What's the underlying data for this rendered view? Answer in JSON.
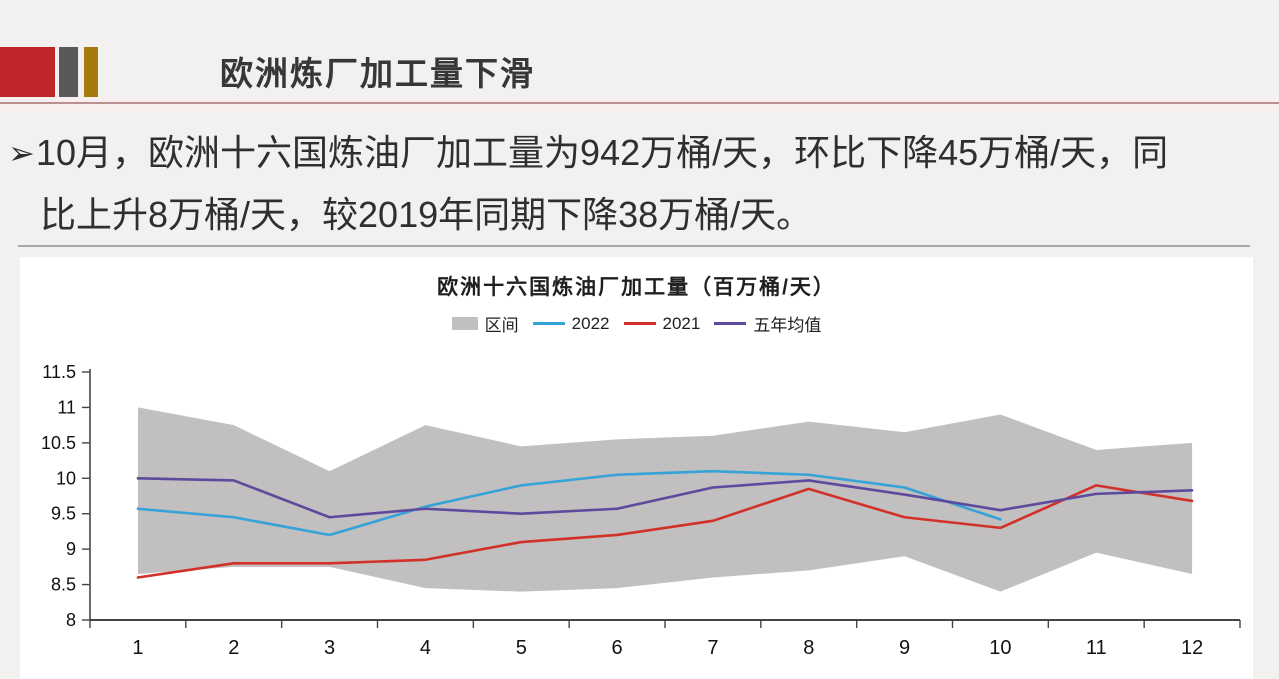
{
  "header": {
    "title": "欧洲炼厂加工量下滑",
    "accent_red": "#bf2629",
    "accent_gray": "#5b5859",
    "accent_gold": "#a8790f"
  },
  "bullet": {
    "marker": "➢",
    "lines": [
      "10月，欧洲十六国炼油厂加工量为942万桶/天，环比下降45万桶/天，同",
      "比上升8万桶/天，较2019年同期下降38万桶/天。"
    ]
  },
  "chart_data": {
    "type": "line",
    "title": "欧洲十六国炼油厂加工量（百万桶/天）",
    "categories": [
      1,
      2,
      3,
      4,
      5,
      6,
      7,
      8,
      9,
      10,
      11,
      12
    ],
    "x_tick_labels": [
      "1",
      "2",
      "3",
      "4",
      "5",
      "6",
      "7",
      "8",
      "9",
      "10",
      "11",
      "12"
    ],
    "y_tick_labels": [
      "8",
      "8.5",
      "9",
      "9.5",
      "10",
      "10.5",
      "11",
      "11.5"
    ],
    "ylim": [
      8,
      11.5
    ],
    "grid": false,
    "legend_position": "top",
    "axis_color": "#454545",
    "band": {
      "name": "区间",
      "color": "#c1bfbf",
      "upper": [
        11.0,
        10.75,
        10.1,
        10.75,
        10.45,
        10.55,
        10.6,
        10.8,
        10.65,
        10.9,
        10.4,
        10.5
      ],
      "lower": [
        8.65,
        8.75,
        8.75,
        8.45,
        8.4,
        8.45,
        8.6,
        8.7,
        8.9,
        8.4,
        8.95,
        8.65
      ]
    },
    "series": [
      {
        "name": "2022",
        "color": "#35a3d8",
        "values": [
          9.57,
          9.45,
          9.2,
          9.6,
          9.9,
          10.05,
          10.1,
          10.05,
          9.87,
          9.42,
          null,
          null
        ]
      },
      {
        "name": "2021",
        "color": "#d13129",
        "values": [
          8.6,
          8.8,
          8.8,
          8.85,
          9.1,
          9.2,
          9.4,
          9.85,
          9.45,
          9.3,
          9.9,
          9.68
        ]
      },
      {
        "name": "五年均值",
        "color": "#5d4a9d",
        "values": [
          10.0,
          9.97,
          9.45,
          9.57,
          9.5,
          9.57,
          9.87,
          9.97,
          9.77,
          9.55,
          9.78,
          9.83
        ]
      }
    ]
  }
}
